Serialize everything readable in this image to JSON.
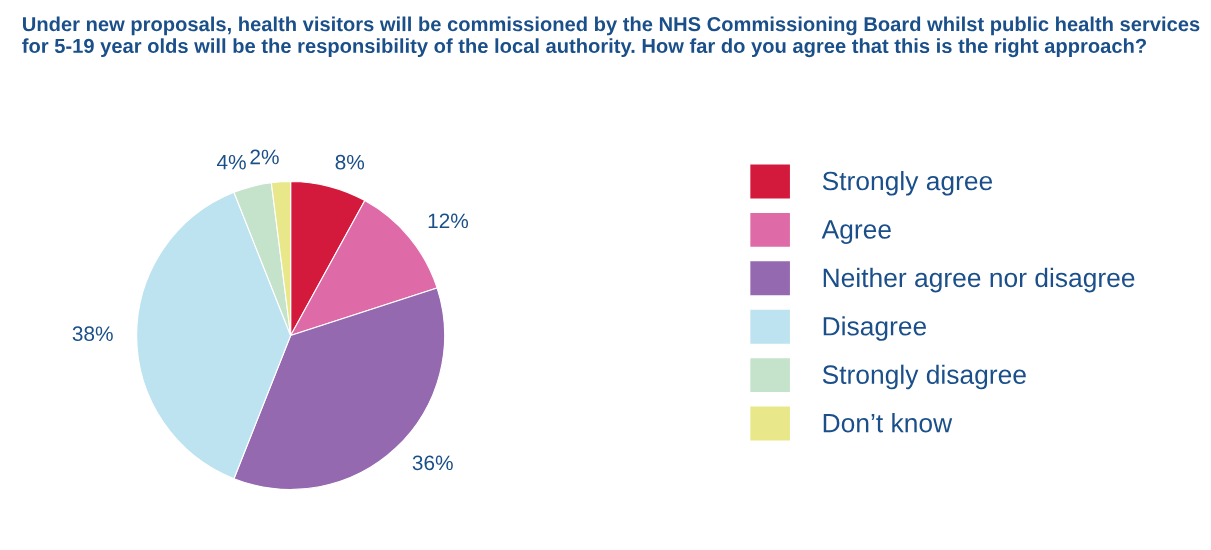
{
  "chart_data": {
    "type": "pie",
    "title": "Under new proposals, health visitors will be commissioned by the NHS Commissioning Board whilst public health services for 5-19 year olds will be the responsibility of the local authority. How far do you agree that this is the right approach?",
    "categories": [
      "Strongly agree",
      "Agree",
      "Neither agree nor disagree",
      "Disagree",
      "Strongly disagree",
      "Don’t know"
    ],
    "values": [
      8,
      12,
      36,
      38,
      4,
      2
    ],
    "value_labels": [
      "8%",
      "12%",
      "36%",
      "38%",
      "4%",
      "2%"
    ],
    "colors": [
      "#d41a3c",
      "#de6aa8",
      "#9569b0",
      "#bde3f0",
      "#c5e3cb",
      "#e8e88a"
    ],
    "legend": "right"
  }
}
